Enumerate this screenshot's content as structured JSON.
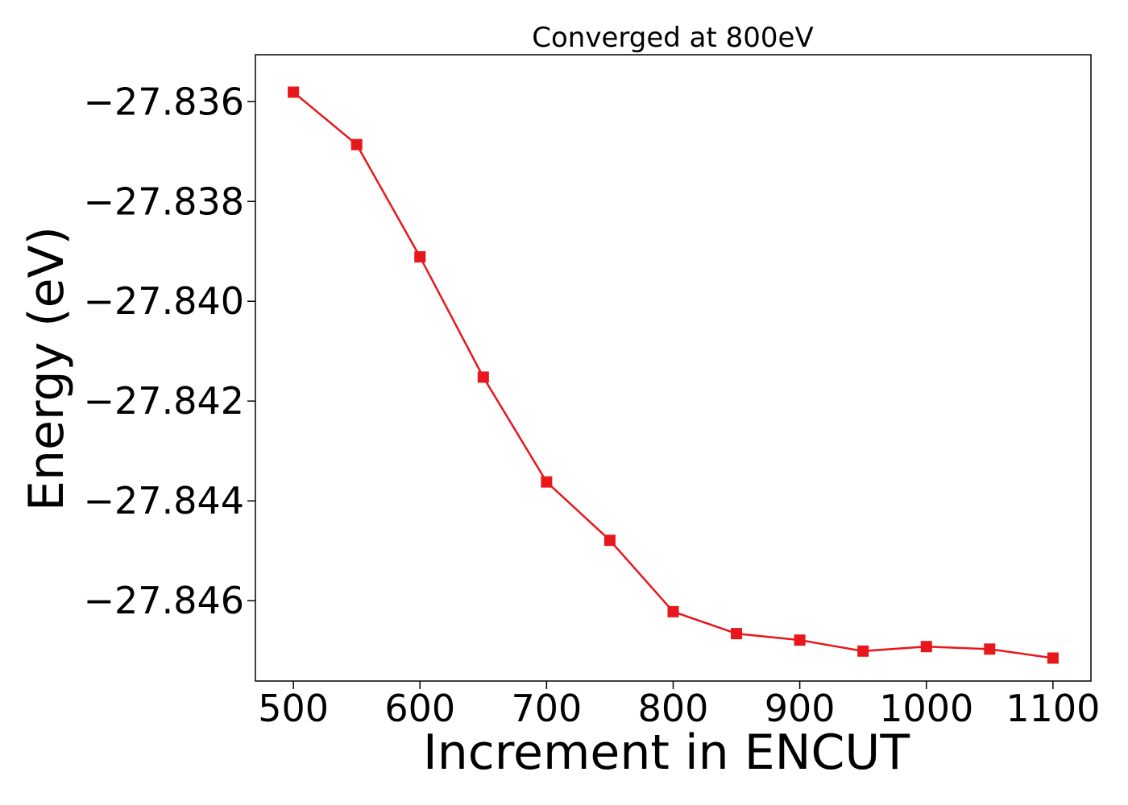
{
  "chart_data": {
    "type": "line",
    "title": "Converged at 800eV",
    "xlabel": "Increment in ENCUT",
    "ylabel": "Energy (eV)",
    "x": [
      500,
      550,
      600,
      650,
      700,
      750,
      800,
      850,
      900,
      950,
      1000,
      1050,
      1100
    ],
    "series": [
      {
        "values": [
          -27.83581,
          -27.83686,
          -27.83911,
          -27.84152,
          -27.84362,
          -27.84479,
          -27.84622,
          -27.84666,
          -27.84679,
          -27.84701,
          -27.84692,
          -27.84697,
          -27.84715
        ]
      }
    ],
    "xlim": [
      470,
      1130
    ],
    "ylim": [
      -27.84761,
      -27.83506
    ],
    "xticks": [
      500,
      600,
      700,
      800,
      900,
      1000,
      1100
    ],
    "xtick_labels": [
      "500",
      "600",
      "700",
      "800",
      "900",
      "1000",
      "1100"
    ],
    "yticks": [
      -27.836,
      -27.838,
      -27.84,
      -27.842,
      -27.844,
      -27.846
    ],
    "ytick_labels": [
      "−27.836",
      "−27.838",
      "−27.840",
      "−27.842",
      "−27.844",
      "−27.846"
    ],
    "grid": false,
    "legend": "none",
    "marker": "square",
    "color": "#e8171c"
  }
}
